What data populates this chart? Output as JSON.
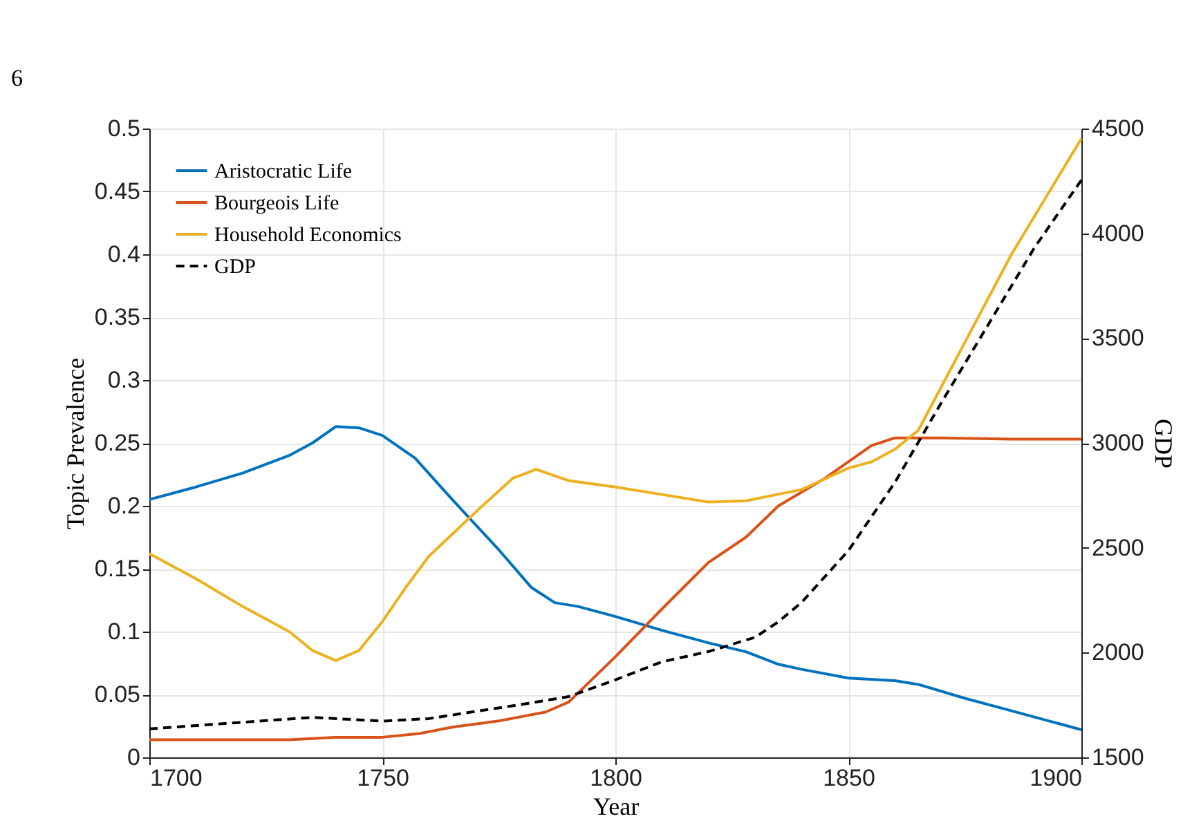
{
  "chart_data": {
    "type": "line",
    "xlabel": "Year",
    "ylabel": "Topic Prevalence",
    "y2label": "GDP",
    "annotations": [
      "6"
    ],
    "xlim": [
      1700,
      1900
    ],
    "xticks": [
      1700,
      1750,
      1800,
      1850,
      1900
    ],
    "ylim": [
      0,
      0.5
    ],
    "yticks": [
      0,
      0.05,
      0.1,
      0.15,
      0.2,
      0.25,
      0.3,
      0.35,
      0.4,
      0.45,
      0.5
    ],
    "y2lim": [
      1500,
      4500
    ],
    "y2ticks": [
      1500,
      2000,
      2500,
      3000,
      3500,
      4000,
      4500
    ],
    "grid": true,
    "legend": "top left",
    "marker": "none",
    "series": [
      {
        "name": "Aristocratic Life",
        "color": "#0072bd",
        "line_style": "solid",
        "x": [
          1700,
          1710,
          1720,
          1730,
          1735,
          1740,
          1745,
          1750,
          1757,
          1765,
          1775,
          1782,
          1787,
          1792,
          1800,
          1810,
          1820,
          1828,
          1835,
          1840,
          1850,
          1860,
          1865,
          1875,
          1885,
          1900
        ],
        "values": [
          0.205,
          0.215,
          0.226,
          0.24,
          0.25,
          0.263,
          0.262,
          0.256,
          0.238,
          0.205,
          0.165,
          0.135,
          0.123,
          0.12,
          0.112,
          0.101,
          0.091,
          0.084,
          0.074,
          0.07,
          0.063,
          0.061,
          0.058,
          0.047,
          0.037,
          0.022
        ]
      },
      {
        "name": "Bourgeois Life",
        "color": "#d95319",
        "line_style": "solid",
        "x": [
          1700,
          1730,
          1740,
          1750,
          1758,
          1765,
          1775,
          1785,
          1790,
          1800,
          1810,
          1820,
          1828,
          1835,
          1845,
          1855,
          1860,
          1870,
          1885,
          1900
        ],
        "values": [
          0.014,
          0.014,
          0.016,
          0.016,
          0.019,
          0.024,
          0.029,
          0.036,
          0.044,
          0.08,
          0.118,
          0.155,
          0.175,
          0.2,
          0.222,
          0.248,
          0.254,
          0.254,
          0.253,
          0.253
        ]
      },
      {
        "name": "Household Economics",
        "color": "#edb120",
        "line_style": "solid",
        "x": [
          1700,
          1710,
          1720,
          1730,
          1735,
          1740,
          1745,
          1750,
          1755,
          1760,
          1770,
          1778,
          1783,
          1790,
          1800,
          1810,
          1820,
          1828,
          1840,
          1850,
          1855,
          1860,
          1865,
          1875,
          1885,
          1900
        ],
        "values": [
          0.162,
          0.142,
          0.12,
          0.1,
          0.085,
          0.077,
          0.085,
          0.108,
          0.135,
          0.16,
          0.195,
          0.222,
          0.229,
          0.22,
          0.215,
          0.209,
          0.203,
          0.204,
          0.213,
          0.23,
          0.235,
          0.245,
          0.26,
          0.33,
          0.4,
          0.492
        ]
      },
      {
        "name": "GDP",
        "color": "#000000",
        "line_style": "dashed",
        "axis": "y2",
        "x": [
          1700,
          1735,
          1750,
          1760,
          1780,
          1790,
          1800,
          1810,
          1820,
          1830,
          1835,
          1840,
          1850,
          1860,
          1870,
          1880,
          1890,
          1900
        ],
        "values": [
          1636,
          1691,
          1673,
          1685,
          1753,
          1790,
          1870,
          1956,
          2005,
          2073,
          2147,
          2240,
          2486,
          2812,
          3194,
          3564,
          3934,
          4254
        ]
      }
    ]
  }
}
